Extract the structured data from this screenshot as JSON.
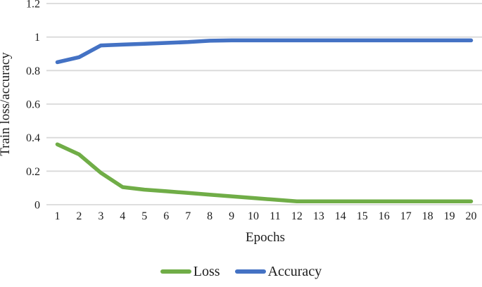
{
  "figure": {
    "background": "#FFFFFF",
    "text_color": "#1C1C1C"
  },
  "chart_data": {
    "type": "line",
    "title": "",
    "xlabel": "Epochs",
    "ylabel": "Train loss/accuracy",
    "categories": [
      1,
      2,
      3,
      4,
      5,
      6,
      7,
      8,
      9,
      10,
      11,
      12,
      13,
      14,
      15,
      16,
      17,
      18,
      19,
      20
    ],
    "series": [
      {
        "name": "Loss",
        "color": "#70AD47",
        "values": [
          0.36,
          0.3,
          0.19,
          0.105,
          0.09,
          0.08,
          0.07,
          0.06,
          0.05,
          0.04,
          0.03,
          0.02,
          0.02,
          0.02,
          0.02,
          0.02,
          0.02,
          0.02,
          0.02,
          0.02
        ]
      },
      {
        "name": "Accuracy",
        "color": "#4472C4",
        "values": [
          0.85,
          0.88,
          0.95,
          0.955,
          0.96,
          0.965,
          0.97,
          0.978,
          0.98,
          0.98,
          0.98,
          0.98,
          0.98,
          0.98,
          0.98,
          0.98,
          0.98,
          0.98,
          0.98,
          0.98
        ]
      }
    ],
    "ylim": [
      0,
      1.2
    ],
    "yticks": [
      0,
      0.2,
      0.4,
      0.6,
      0.8,
      1,
      1.2
    ],
    "ytick_labels": [
      "0",
      "0.2",
      "0.4",
      "0.6",
      "0.8",
      "1",
      "1.2"
    ],
    "grid": "horizontal",
    "gridline_color": "#D9D9D9",
    "legend_position": "bottom-center",
    "line_width": 5.5
  }
}
